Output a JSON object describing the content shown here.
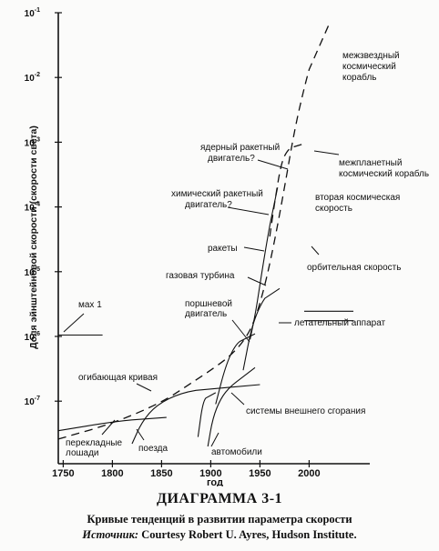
{
  "chart_data": {
    "type": "line",
    "y_scale": "log",
    "ylabel": "Доля эйнштейновой скорости (скорости света)",
    "xlabel": "год",
    "xlim": [
      1745,
      2050
    ],
    "ylim": [
      1e-08,
      0.1
    ],
    "x_ticks": [
      "1750",
      "1800",
      "1850",
      "1900",
      "1950",
      "2000"
    ],
    "y_ticks": [
      {
        "value": 0.1,
        "base": "10",
        "exp": "-1"
      },
      {
        "value": 0.01,
        "base": "10",
        "exp": "-2"
      },
      {
        "value": 0.001,
        "base": "10",
        "exp": "-3"
      },
      {
        "value": 0.0001,
        "base": "10",
        "exp": "-4"
      },
      {
        "value": 1e-05,
        "base": "10",
        "exp": "-5"
      },
      {
        "value": 1e-06,
        "base": "10",
        "exp": "-6"
      },
      {
        "value": 1e-07,
        "base": "10",
        "exp": "-7"
      }
    ],
    "series": [
      {
        "name": "огибающая кривая",
        "style": "dashed",
        "points": [
          [
            1745,
            2.6e-08
          ],
          [
            1800,
            4.5e-08
          ],
          [
            1850,
            9.5e-08
          ],
          [
            1880,
            1.9e-07
          ],
          [
            1900,
            3e-07
          ],
          [
            1920,
            5e-07
          ],
          [
            1935,
            9e-07
          ],
          [
            1945,
            1.8e-06
          ],
          [
            1955,
            6e-06
          ],
          [
            1965,
            3e-05
          ],
          [
            1975,
            0.0002
          ],
          [
            1985,
            0.0015
          ],
          [
            1995,
            0.007
          ],
          [
            2005,
            0.025
          ],
          [
            2020,
            0.065
          ]
        ]
      },
      {
        "name": "перекладные лошади",
        "style": "solid",
        "points": [
          [
            1745,
            3.5e-08
          ],
          [
            1800,
            4.8e-08
          ],
          [
            1840,
            5.5e-08
          ],
          [
            1855,
            5.6e-08
          ]
        ]
      },
      {
        "name": "поезда",
        "style": "solid",
        "points": [
          [
            1820,
            2.2e-08
          ],
          [
            1830,
            4.8e-08
          ],
          [
            1845,
            8.8e-08
          ],
          [
            1870,
            1.35e-07
          ],
          [
            1900,
            1.6e-07
          ],
          [
            1950,
            1.8e-07
          ]
        ]
      },
      {
        "name": "автомобили",
        "style": "solid",
        "points": [
          [
            1897,
            2e-08
          ],
          [
            1902,
            5.5e-08
          ],
          [
            1910,
            1.1e-07
          ],
          [
            1920,
            1.7e-07
          ],
          [
            1935,
            2.5e-07
          ],
          [
            1945,
            3.3e-07
          ]
        ]
      },
      {
        "name": "системы внешнего сгорания",
        "style": "solid",
        "points": [
          [
            1887,
            2.8e-08
          ],
          [
            1892,
            1e-07
          ],
          [
            1898,
            1.25e-07
          ],
          [
            1905,
            1.35e-07
          ]
        ]
      },
      {
        "name": "поршневой двигатель",
        "style": "solid",
        "points": [
          [
            1905,
            9e-08
          ],
          [
            1915,
            3.5e-07
          ],
          [
            1925,
            7.5e-07
          ],
          [
            1935,
            9.5e-07
          ],
          [
            1945,
            1.1e-06
          ]
        ]
      },
      {
        "name": "газовая турбина",
        "style": "solid",
        "points": [
          [
            1933,
            3e-07
          ],
          [
            1941,
            1.3e-06
          ],
          [
            1950,
            3e-06
          ],
          [
            1960,
            5e-06
          ],
          [
            1970,
            5.5e-06
          ]
        ]
      },
      {
        "name": "ракеты",
        "style": "solid",
        "points": [
          [
            1940,
            9e-07
          ],
          [
            1946,
            2.5e-06
          ],
          [
            1952,
            1e-05
          ],
          [
            1958,
            3.5e-05
          ],
          [
            1963,
            9e-05
          ],
          [
            1968,
            0.0002
          ]
        ]
      },
      {
        "name": "межпланетный космический корабль",
        "style": "dashed",
        "points": [
          [
            1960,
            3.5e-05
          ],
          [
            1966,
            0.00015
          ],
          [
            1972,
            0.0005
          ],
          [
            1978,
            0.00075
          ],
          [
            1985,
            0.0009
          ],
          [
            1995,
            0.00095
          ]
        ]
      },
      {
        "name": "вторая космическая скорость",
        "style": "solid",
        "points": [
          [
            1995,
            2.45e-06
          ],
          [
            2045,
            2.45e-06
          ]
        ]
      },
      {
        "name": "орбительная скорость",
        "style": "solid",
        "points": [
          [
            1995,
            1.75e-06
          ],
          [
            2045,
            1.75e-06
          ]
        ]
      },
      {
        "name": "мах 1",
        "style": "solid",
        "points": [
          [
            1745,
            1.05e-06
          ],
          [
            1790,
            1.05e-06
          ]
        ]
      }
    ],
    "annotations": {
      "mach": "мах 1",
      "envelope": "огибающая кривая",
      "horses_1": "перекладные",
      "horses_2": "лошади",
      "trains": "поезда",
      "cars": "автомобили",
      "ext_comb": "системы внешнего сгорания",
      "piston_1": "поршневой",
      "piston_2": "двигатель",
      "aircraft": "летательный аппарат",
      "gas_turbine": "газовая турбина",
      "rockets": "ракеты",
      "chem_1": "химический ракетный",
      "chem_2": "двигатель?",
      "nuc_1": "ядерный ракетный",
      "nuc_2": "двигатель?",
      "interstellar_1": "межзвездный",
      "interstellar_2": "космический",
      "interstellar_3": "корабль",
      "interplanetary_1": "межпланетный",
      "interplanetary_2": "космический корабль",
      "escape_1": "вторая космическая",
      "escape_2": "скорость",
      "orbital": "орбительная скорость"
    }
  },
  "caption": {
    "title": "ДИАГРАММА 3-1",
    "subtitle": "Кривые тенденций в развитии параметра скорости",
    "source_label": "Источник:",
    "source_text": " Courtesy Robert U. Ayres, Hudson Institute."
  }
}
